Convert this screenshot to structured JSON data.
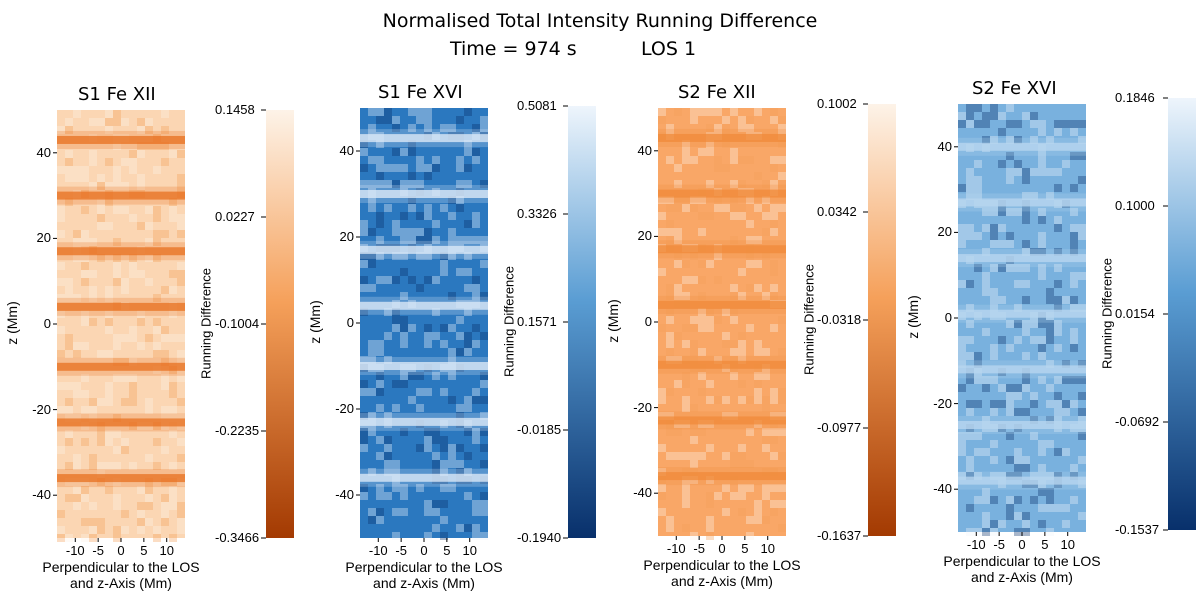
{
  "header": {
    "title": "Normalised Total Intensity Running Difference",
    "time_label": "Time = 974 s",
    "los_label": "LOS 1"
  },
  "chart_data": [
    {
      "type": "heatmap",
      "title": "S1 Fe XII",
      "colormap": "orange",
      "xlabel_line1": "Perpendicular to the LOS",
      "xlabel_line2": "and z-Axis (Mm)",
      "ylabel": "z (Mm)",
      "xlim": [
        -14,
        14
      ],
      "ylim": [
        -50,
        50
      ],
      "xticks": [
        -10,
        -5,
        0,
        5,
        10
      ],
      "yticks": [
        40,
        20,
        0,
        -20,
        -40
      ],
      "yticks_minor": [],
      "colorbar_label": "Running Difference",
      "colorbar_ticks": [
        "0.1458",
        "0.0227",
        "-0.1004",
        "-0.2235",
        "-0.3466"
      ],
      "colorbar_range": [
        -0.3466,
        0.1458
      ],
      "bands_z": [
        43,
        30,
        17,
        4,
        -10,
        -23,
        -36
      ]
    },
    {
      "type": "heatmap",
      "title": "S1 Fe XVI",
      "colormap": "blue",
      "xlabel_line1": "Perpendicular to the LOS",
      "xlabel_line2": "and z-Axis (Mm)",
      "ylabel": "z (Mm)",
      "xlim": [
        -14,
        14
      ],
      "ylim": [
        -50,
        50
      ],
      "xticks": [
        -10,
        -5,
        0,
        5,
        10
      ],
      "yticks": [
        40,
        20,
        0,
        -20,
        -40
      ],
      "colorbar_label": "Running Difference",
      "colorbar_ticks": [
        "0.5081",
        "0.3326",
        "0.1571",
        "-0.0185",
        "-0.1940"
      ],
      "colorbar_range": [
        -0.194,
        0.5081
      ],
      "bands_z": [
        43,
        30,
        17,
        4,
        -10,
        -23,
        -36
      ]
    },
    {
      "type": "heatmap",
      "title": "S2 Fe XII",
      "colormap": "orange",
      "xlabel_line1": "Perpendicular to the LOS",
      "xlabel_line2": "and z-Axis (Mm)",
      "ylabel": "z (Mm)",
      "xlim": [
        -14,
        14
      ],
      "ylim": [
        -50,
        50
      ],
      "xticks": [
        -10,
        -5,
        0,
        5,
        10
      ],
      "yticks": [
        40,
        20,
        0,
        -20,
        -40
      ],
      "colorbar_label": "Running Difference",
      "colorbar_ticks": [
        "0.1002",
        "0.0342",
        "-0.0318",
        "-0.0977",
        "-0.1637"
      ],
      "colorbar_range": [
        -0.1637,
        0.1002
      ],
      "bands_z": [
        43,
        30,
        17,
        4,
        -10,
        -23,
        -36
      ]
    },
    {
      "type": "heatmap",
      "title": "S2 Fe XVI",
      "colormap": "blue",
      "xlabel_line1": "Perpendicular to the LOS",
      "xlabel_line2": "and z-Axis (Mm)",
      "ylabel": "z (Mm)",
      "xlim": [
        -14,
        14
      ],
      "ylim": [
        -50,
        50
      ],
      "xticks": [
        -10,
        -5,
        0,
        5,
        10
      ],
      "yticks": [
        40,
        20,
        0,
        -20,
        -40
      ],
      "colorbar_label": "Running Difference",
      "colorbar_ticks": [
        "0.1846",
        "0.1000",
        "0.0154",
        "-0.0692",
        "-0.1537"
      ],
      "colorbar_range": [
        -0.1537,
        0.1846
      ],
      "bands_z": [
        40,
        27,
        14,
        1,
        -12,
        -25,
        -38
      ]
    }
  ],
  "colors": {
    "orange_light": "#fdf3e8",
    "orange_mid": "#f5a05a",
    "orange_dark": "#a33a02",
    "blue_light": "#eef5fc",
    "blue_mid": "#5a9dd3",
    "blue_dark": "#08306b"
  }
}
